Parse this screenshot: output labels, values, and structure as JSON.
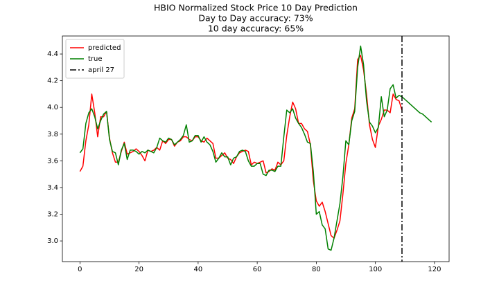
{
  "chart_data": {
    "type": "line",
    "title": [
      "HBIO Normalized Stock Price 10 Day Prediction",
      "Day to Day accuracy: 73%",
      "10 day accuracy: 65%"
    ],
    "x": [
      0,
      1,
      2,
      3,
      4,
      5,
      6,
      7,
      8,
      9,
      10,
      11,
      12,
      13,
      14,
      15,
      16,
      17,
      18,
      19,
      20,
      21,
      22,
      23,
      24,
      25,
      26,
      27,
      28,
      29,
      30,
      31,
      32,
      33,
      34,
      35,
      36,
      37,
      38,
      39,
      40,
      41,
      42,
      43,
      44,
      45,
      46,
      47,
      48,
      49,
      50,
      51,
      52,
      53,
      54,
      55,
      56,
      57,
      58,
      59,
      60,
      61,
      62,
      63,
      64,
      65,
      66,
      67,
      68,
      69,
      70,
      71,
      72,
      73,
      74,
      75,
      76,
      77,
      78,
      79,
      80,
      81,
      82,
      83,
      84,
      85,
      86,
      87,
      88,
      89,
      90,
      91,
      92,
      93,
      94,
      95,
      96,
      97,
      98,
      99,
      100,
      101,
      102,
      103,
      104,
      105,
      106,
      107,
      108,
      109,
      110,
      111,
      112,
      113,
      114,
      115,
      116,
      117,
      118,
      119
    ],
    "series": [
      {
        "name": "predicted",
        "color": "#ff0000",
        "values": [
          3.52,
          3.56,
          3.75,
          3.87,
          4.1,
          3.96,
          3.78,
          3.93,
          3.93,
          3.97,
          3.77,
          3.66,
          3.59,
          3.59,
          3.67,
          3.74,
          3.65,
          3.66,
          3.67,
          3.69,
          3.67,
          3.64,
          3.6,
          3.68,
          3.67,
          3.68,
          3.7,
          3.68,
          3.75,
          3.73,
          3.76,
          3.76,
          3.71,
          3.74,
          3.75,
          3.78,
          3.78,
          3.76,
          3.75,
          3.78,
          3.78,
          3.75,
          3.74,
          3.77,
          3.75,
          3.73,
          3.62,
          3.62,
          3.64,
          3.66,
          3.62,
          3.61,
          3.58,
          3.63,
          3.66,
          3.67,
          3.68,
          3.67,
          3.57,
          3.59,
          3.58,
          3.59,
          3.6,
          3.51,
          3.52,
          3.54,
          3.53,
          3.59,
          3.57,
          3.6,
          3.79,
          3.93,
          4.04,
          3.99,
          3.88,
          3.88,
          3.84,
          3.82,
          3.72,
          3.45,
          3.3,
          3.26,
          3.29,
          3.22,
          3.13,
          3.04,
          3.02,
          3.08,
          3.15,
          3.35,
          3.58,
          3.72,
          3.92,
          3.99,
          4.36,
          4.39,
          4.28,
          4.1,
          3.87,
          3.76,
          3.7,
          3.86,
          3.91,
          3.98,
          3.98,
          3.96,
          4.1,
          4.06,
          4.05,
          3.98,
          null,
          null,
          null,
          null,
          null,
          null,
          null,
          null,
          null,
          null
        ]
      },
      {
        "name": "true",
        "color": "#008000",
        "values": [
          3.66,
          3.69,
          3.88,
          3.96,
          3.99,
          3.93,
          3.84,
          3.9,
          3.95,
          3.97,
          3.76,
          3.67,
          3.66,
          3.57,
          3.68,
          3.73,
          3.61,
          3.68,
          3.68,
          3.67,
          3.65,
          3.67,
          3.66,
          3.68,
          3.67,
          3.66,
          3.7,
          3.77,
          3.75,
          3.74,
          3.77,
          3.76,
          3.72,
          3.74,
          3.76,
          3.79,
          3.87,
          3.74,
          3.75,
          3.79,
          3.79,
          3.74,
          3.78,
          3.74,
          3.72,
          3.67,
          3.59,
          3.62,
          3.66,
          3.63,
          3.63,
          3.57,
          3.62,
          3.63,
          3.67,
          3.68,
          3.67,
          3.6,
          3.56,
          3.56,
          3.58,
          3.58,
          3.5,
          3.49,
          3.53,
          3.53,
          3.52,
          3.56,
          3.56,
          3.78,
          3.98,
          3.96,
          3.99,
          3.92,
          3.88,
          3.85,
          3.8,
          3.74,
          3.73,
          3.52,
          3.2,
          3.22,
          3.12,
          3.09,
          2.94,
          2.93,
          3.02,
          3.15,
          3.28,
          3.48,
          3.75,
          3.72,
          3.9,
          3.97,
          4.3,
          4.46,
          4.32,
          4.05,
          3.89,
          3.86,
          3.81,
          3.85,
          4.08,
          3.93,
          3.98,
          4.14,
          4.17,
          4.07,
          4.09,
          4.08,
          4.06,
          4.04,
          4.02,
          4.0,
          3.98,
          3.96,
          3.95,
          3.93,
          3.91,
          3.89
        ]
      }
    ],
    "vline": {
      "name": "april 27",
      "x": 109,
      "color": "#000000"
    },
    "xlim": [
      -5.95,
      124.95
    ],
    "ylim": [
      2.845,
      4.535
    ],
    "xticks": [
      0,
      20,
      40,
      60,
      80,
      100,
      120
    ],
    "yticks": [
      {
        "value": 3.0,
        "label": "3.0"
      },
      {
        "value": 3.2,
        "label": "3.2"
      },
      {
        "value": 3.4,
        "label": "3.4"
      },
      {
        "value": 3.6,
        "label": "3.6"
      },
      {
        "value": 3.8,
        "label": "3.8"
      },
      {
        "value": 4.0,
        "label": "4.0"
      },
      {
        "value": 4.2,
        "label": "4.2"
      },
      {
        "value": 4.4,
        "label": "4.4"
      }
    ],
    "legend": "upper left"
  }
}
